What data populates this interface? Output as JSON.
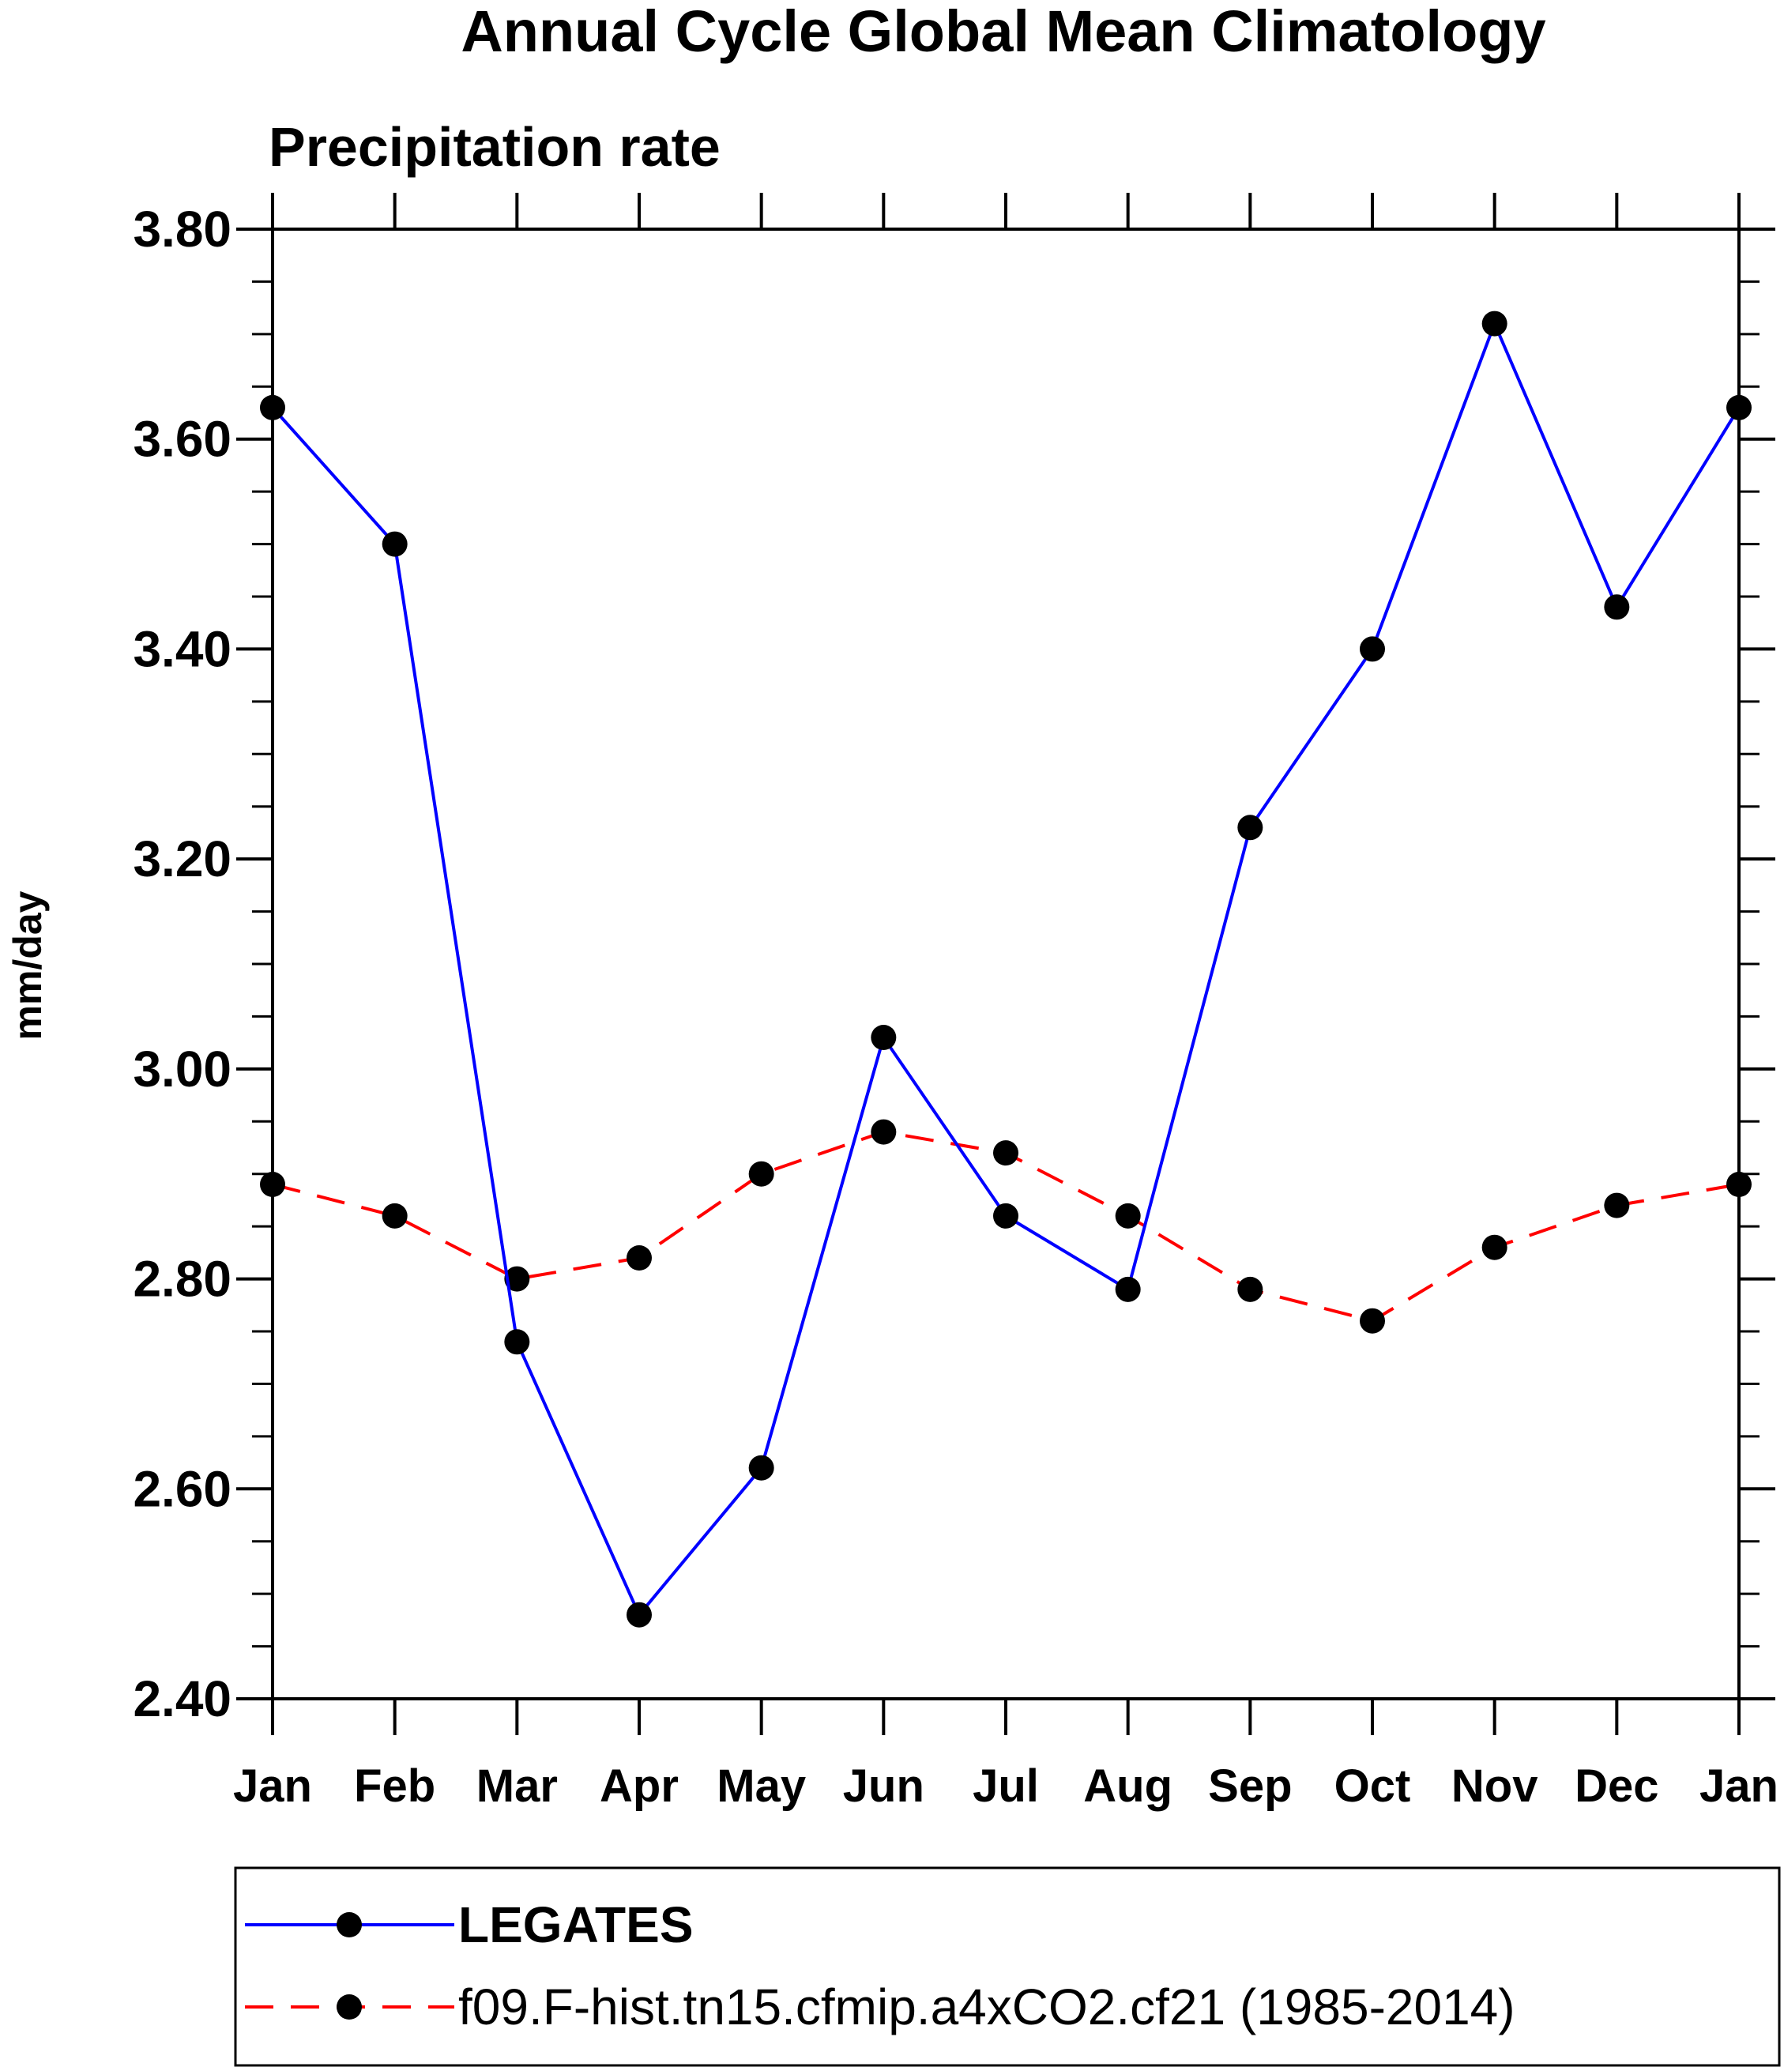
{
  "chart_data": {
    "type": "line",
    "title": "Annual Cycle Global Mean Climatology",
    "subtitle": "Precipitation rate",
    "xlabel": "",
    "ylabel": "mm/day",
    "categories": [
      "Jan",
      "Feb",
      "Mar",
      "Apr",
      "May",
      "Jun",
      "Jul",
      "Aug",
      "Sep",
      "Oct",
      "Nov",
      "Dec",
      "Jan"
    ],
    "ylim": [
      2.4,
      3.8
    ],
    "yticks": [
      "2.40",
      "2.60",
      "2.80",
      "3.00",
      "3.20",
      "3.40",
      "3.60",
      "3.80"
    ],
    "yminor_step": 0.05,
    "grid": false,
    "legend_position": "bottom",
    "series": [
      {
        "name": "LEGATES",
        "color": "#0000ff",
        "dash": "solid",
        "marker": "filled-circle",
        "values": [
          3.63,
          3.5,
          2.74,
          2.48,
          2.62,
          3.03,
          2.86,
          2.79,
          3.23,
          3.4,
          3.71,
          3.44,
          3.63
        ]
      },
      {
        "name": "f09.F-hist.tn15.cfmip.a4xCO2.cf21 (1985-2014)",
        "color": "#ff0000",
        "dash": "dashed",
        "marker": "filled-circle",
        "values": [
          2.89,
          2.86,
          2.8,
          2.82,
          2.9,
          2.94,
          2.92,
          2.86,
          2.79,
          2.76,
          2.83,
          2.87,
          2.89
        ]
      }
    ]
  }
}
